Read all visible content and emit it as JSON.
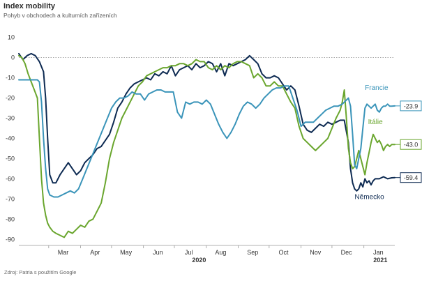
{
  "title": "Index mobility",
  "subtitle": "Pohyb v obchodech a kulturních zařízeních",
  "source": "Zdroj: Patria s použitím Google",
  "chart_data": {
    "type": "line",
    "yticks": [
      10,
      0,
      -10,
      -20,
      -30,
      -40,
      -50,
      -60,
      -70,
      -80,
      -90
    ],
    "ylim": [
      -93,
      13
    ],
    "xlim": [
      0,
      365
    ],
    "month_labels": [
      {
        "label": "Mar",
        "x": 43
      },
      {
        "label": "Apr",
        "x": 74
      },
      {
        "label": "May",
        "x": 104
      },
      {
        "label": "Jun",
        "x": 135
      },
      {
        "label": "Jul",
        "x": 165
      },
      {
        "label": "Aug",
        "x": 196
      },
      {
        "label": "Sep",
        "x": 227
      },
      {
        "label": "Oct",
        "x": 257
      },
      {
        "label": "Nov",
        "x": 288
      },
      {
        "label": "Dec",
        "x": 318
      },
      {
        "label": "Jan",
        "x": 349
      }
    ],
    "year_labels": [
      {
        "label": "2020",
        "x": 175
      },
      {
        "label": "2021",
        "x": 351
      }
    ],
    "month_boundaries": [
      29,
      60,
      90,
      121,
      151,
      182,
      213,
      243,
      274,
      304,
      335
    ],
    "zero_line": true,
    "series": [
      {
        "name": "Německo",
        "color": "#0d2a52",
        "end_label": "-59.4",
        "x": [
          0,
          4,
          8,
          12,
          16,
          20,
          24,
          26,
          28,
          30,
          33,
          36,
          40,
          44,
          48,
          52,
          56,
          60,
          64,
          68,
          72,
          76,
          80,
          84,
          88,
          92,
          96,
          100,
          104,
          108,
          112,
          116,
          120,
          124,
          128,
          132,
          136,
          140,
          144,
          148,
          152,
          156,
          160,
          164,
          168,
          172,
          176,
          180,
          184,
          188,
          192,
          196,
          200,
          204,
          208,
          212,
          216,
          220,
          224,
          228,
          232,
          236,
          240,
          244,
          248,
          252,
          256,
          260,
          264,
          268,
          272,
          276,
          280,
          284,
          288,
          292,
          296,
          300,
          304,
          308,
          312,
          316,
          320,
          322,
          324,
          326,
          328,
          330,
          332,
          334,
          336,
          338,
          340,
          342,
          344,
          346,
          350,
          354,
          358,
          362,
          365
        ],
        "y": [
          2,
          -1,
          1,
          2,
          1,
          -2,
          -7,
          -20,
          -40,
          -58,
          -62,
          -62,
          -58,
          -55,
          -52,
          -55,
          -58,
          -56,
          -52,
          -50,
          -48,
          -45,
          -44,
          -41,
          -38,
          -32,
          -25,
          -22,
          -18,
          -15,
          -13,
          -12,
          -11,
          -10,
          -11,
          -8,
          -9,
          -7,
          -8,
          -4,
          -9,
          -6,
          -5,
          -4,
          -6,
          -3,
          -5,
          -4,
          -2,
          -3,
          -7,
          -3,
          -9,
          -3,
          -4,
          -3,
          -2,
          -1,
          1,
          -1,
          -3,
          -8,
          -10,
          -10,
          -9,
          -10,
          -13,
          -16,
          -14,
          -16,
          -24,
          -33,
          -36,
          -37,
          -35,
          -33,
          -34,
          -32,
          -33,
          -32,
          -31,
          -31,
          -42,
          -55,
          -62,
          -65,
          -66,
          -65,
          -62,
          -64,
          -60,
          -62,
          -61,
          -63,
          -61,
          -60,
          -60,
          -59,
          -60,
          -59.5,
          -59.4
        ]
      },
      {
        "name": "Itálie",
        "color": "#6aa62e",
        "end_label": "-43.0",
        "x": [
          0,
          3,
          6,
          9,
          12,
          15,
          18,
          20,
          22,
          24,
          26,
          28,
          30,
          33,
          36,
          40,
          44,
          48,
          52,
          56,
          60,
          64,
          68,
          72,
          76,
          80,
          84,
          88,
          92,
          96,
          100,
          104,
          108,
          112,
          116,
          120,
          124,
          128,
          132,
          136,
          140,
          144,
          148,
          152,
          156,
          160,
          164,
          168,
          172,
          176,
          180,
          184,
          188,
          192,
          196,
          200,
          204,
          208,
          212,
          216,
          220,
          224,
          228,
          232,
          236,
          240,
          244,
          248,
          252,
          256,
          260,
          264,
          268,
          272,
          276,
          280,
          284,
          288,
          292,
          296,
          300,
          304,
          308,
          310,
          312,
          314,
          316,
          318,
          320,
          322,
          324,
          326,
          328,
          330,
          332,
          334,
          336,
          338,
          340,
          342,
          344,
          346,
          348,
          350,
          352,
          354,
          356,
          358,
          360,
          362,
          365
        ],
        "y": [
          1,
          0,
          -3,
          -8,
          -12,
          -16,
          -20,
          -40,
          -60,
          -72,
          -78,
          -82,
          -84,
          -86,
          -87,
          -88,
          -89,
          -86,
          -87,
          -85,
          -83,
          -84,
          -81,
          -80,
          -76,
          -72,
          -62,
          -50,
          -42,
          -36,
          -30,
          -26,
          -22,
          -18,
          -14,
          -12,
          -9,
          -8,
          -7,
          -6,
          -5,
          -5,
          -4,
          -4,
          -3,
          -3,
          -4,
          -3,
          -1,
          -2,
          -2,
          -5,
          -6,
          -4,
          -6,
          -4,
          -5,
          -3,
          -2,
          -2,
          -3,
          -4,
          -10,
          -8,
          -10,
          -14,
          -14,
          -12,
          -14,
          -14,
          -18,
          -22,
          -25,
          -34,
          -40,
          -42,
          -44,
          -46,
          -44,
          -42,
          -40,
          -35,
          -30,
          -28,
          -26,
          -22,
          -16,
          -30,
          -45,
          -52,
          -55,
          -54,
          -50,
          -46,
          -50,
          -54,
          -58,
          -52,
          -47,
          -42,
          -38,
          -40,
          -42,
          -41,
          -43,
          -46,
          -44,
          -43,
          -44,
          -43,
          -43.0
        ]
      },
      {
        "name": "Francie",
        "color": "#3a94b9",
        "end_label": "-23.9",
        "x": [
          0,
          4,
          8,
          12,
          16,
          18,
          20,
          22,
          24,
          26,
          28,
          30,
          34,
          38,
          42,
          46,
          50,
          54,
          58,
          62,
          66,
          70,
          74,
          78,
          82,
          86,
          90,
          94,
          98,
          102,
          106,
          110,
          114,
          118,
          122,
          126,
          130,
          134,
          138,
          142,
          146,
          150,
          154,
          158,
          162,
          166,
          170,
          174,
          178,
          182,
          186,
          190,
          194,
          198,
          202,
          206,
          210,
          214,
          218,
          222,
          226,
          230,
          234,
          238,
          242,
          246,
          250,
          254,
          258,
          262,
          266,
          270,
          274,
          278,
          282,
          286,
          290,
          294,
          298,
          302,
          306,
          310,
          314,
          316,
          318,
          320,
          322,
          324,
          326,
          328,
          330,
          332,
          334,
          336,
          338,
          340,
          342,
          344,
          346,
          348,
          350,
          352,
          354,
          356,
          358,
          360,
          362,
          365
        ],
        "y": [
          -11,
          -11,
          -11,
          -11,
          -11,
          -11,
          -12,
          -22,
          -40,
          -55,
          -65,
          -68,
          -69,
          -69,
          -68,
          -67,
          -66,
          -67,
          -65,
          -60,
          -55,
          -50,
          -45,
          -40,
          -35,
          -30,
          -25,
          -22,
          -20,
          -20,
          -19,
          -17,
          -18,
          -18,
          -21,
          -18,
          -17,
          -16,
          -16,
          -17,
          -17,
          -17,
          -27,
          -30,
          -22,
          -23,
          -22,
          -22,
          -23,
          -21,
          -23,
          -28,
          -33,
          -37,
          -40,
          -37,
          -33,
          -28,
          -24,
          -22,
          -23,
          -25,
          -23,
          -20,
          -18,
          -16,
          -15,
          -15,
          -14,
          -14,
          -20,
          -26,
          -34,
          -32,
          -32,
          -32,
          -30,
          -28,
          -26,
          -25,
          -24,
          -24,
          -23,
          -22,
          -21,
          -20,
          -24,
          -38,
          -53,
          -55,
          -50,
          -45,
          -35,
          -25,
          -23,
          -24,
          -25,
          -24,
          -23,
          -26,
          -27,
          -25,
          -24,
          -24,
          -23,
          -24,
          -24,
          -23.9
        ]
      }
    ],
    "series_labels": [
      {
        "name": "Francie",
        "x": 336,
        "y": -16
      },
      {
        "name": "Itálie",
        "x": 339,
        "y": -33
      },
      {
        "name": "Německo",
        "x": 326,
        "y": -70
      }
    ]
  }
}
